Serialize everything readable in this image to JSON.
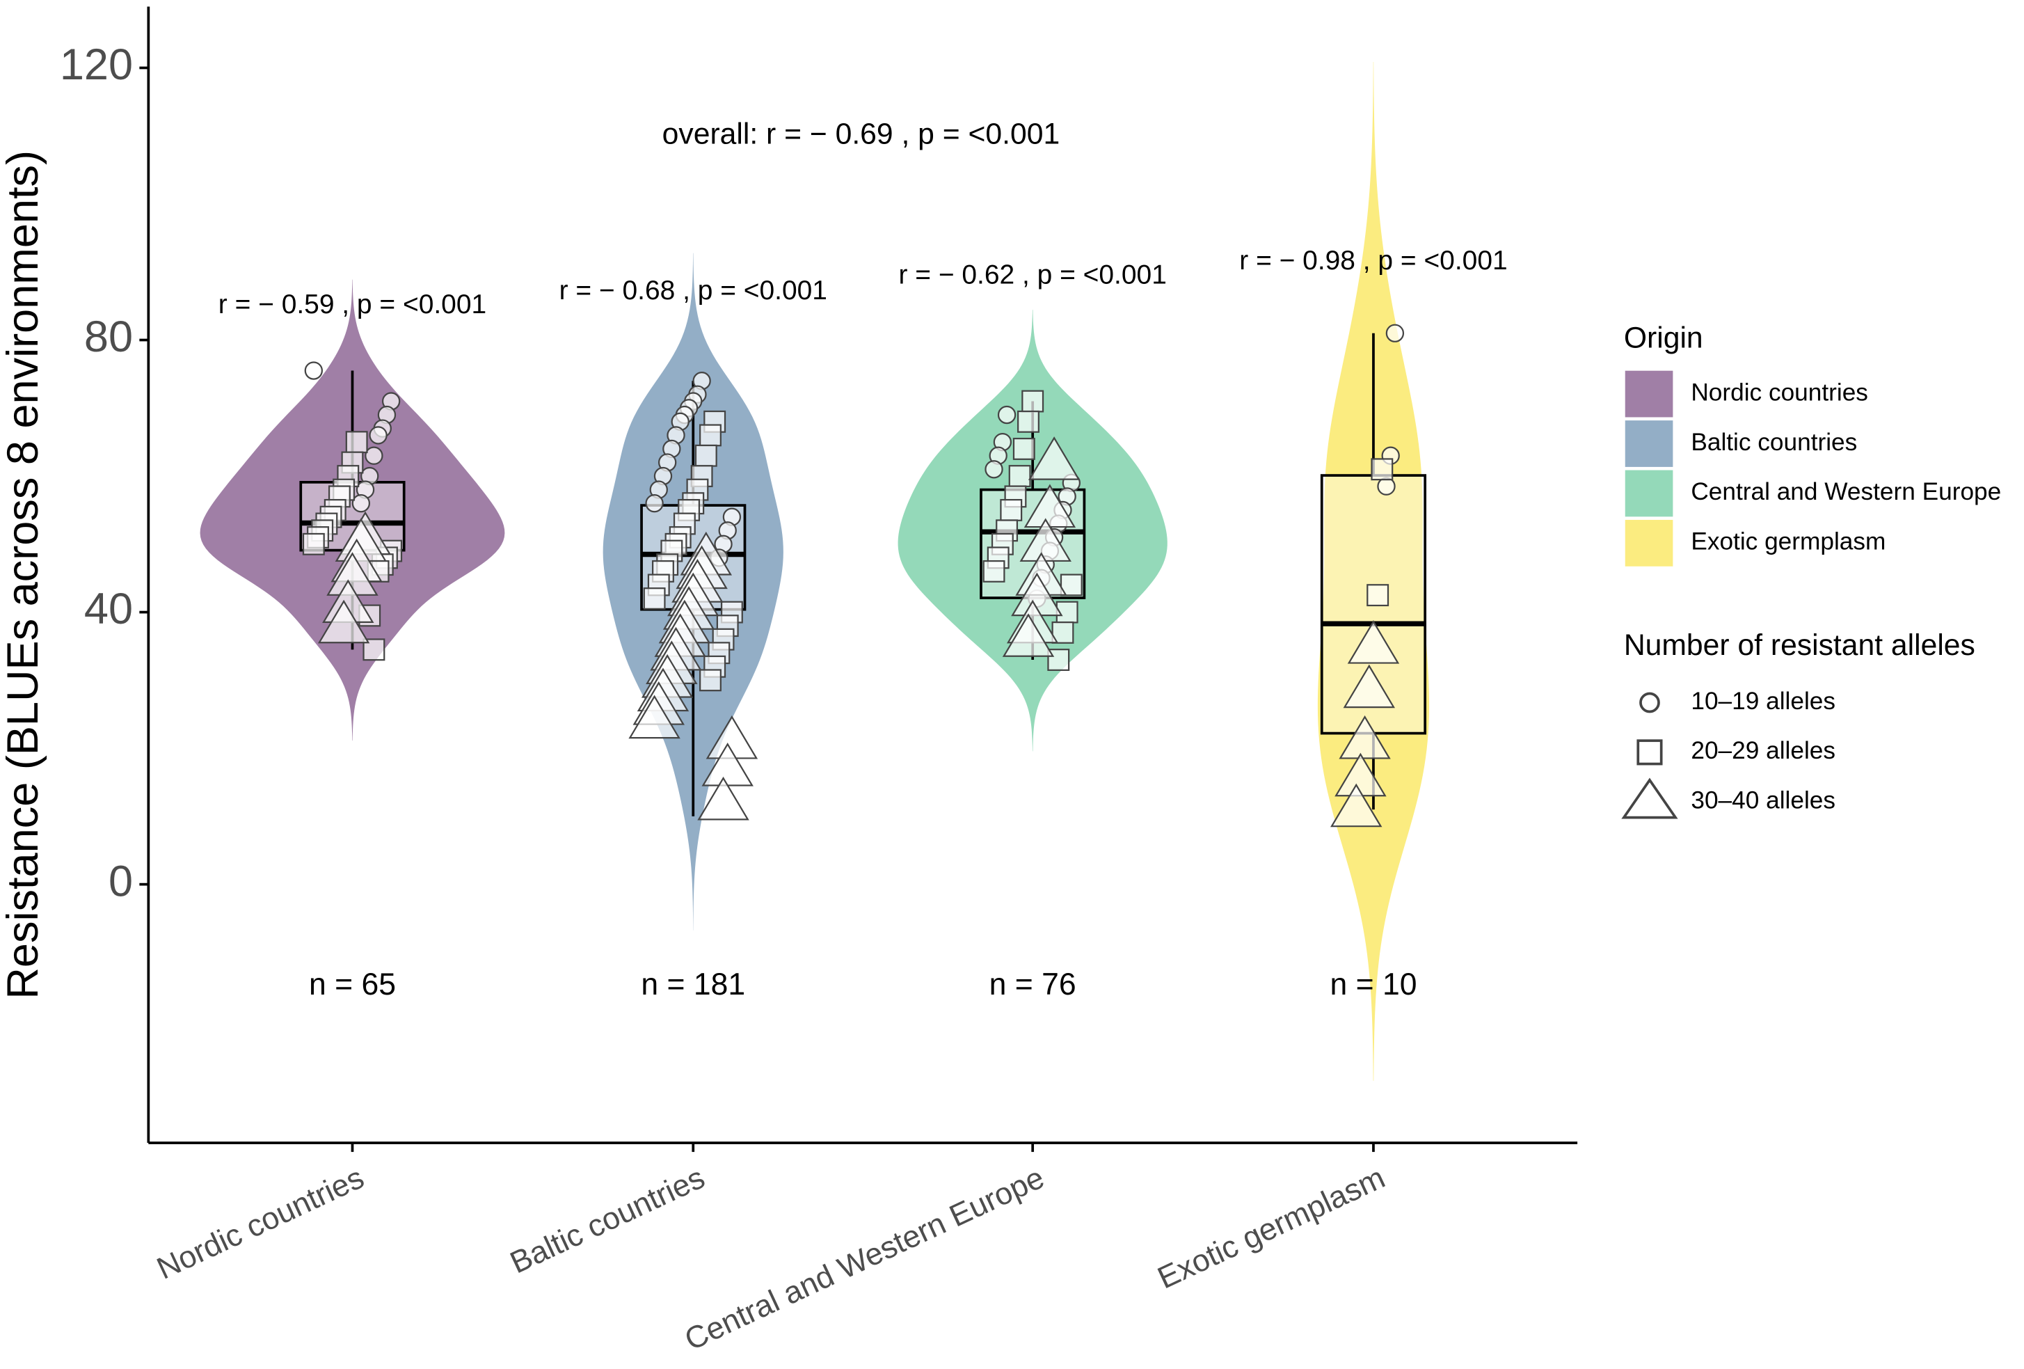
{
  "chart_data": {
    "type": "violin",
    "y_label": "Resistance (BLUEs across 8 environments)",
    "ylim": [
      -38,
      129
    ],
    "yticks": [
      0,
      40,
      80,
      120
    ],
    "categories": [
      "Nordic countries",
      "Baltic countries",
      "Central and Western Europe",
      "Exotic germplasm"
    ],
    "colors": [
      "#a07fa6",
      "#93aec6",
      "#94d9b9",
      "#fbec80"
    ],
    "overall_annotation": "overall: r = − 0.69 , p = <0.001",
    "annotations": [
      "r = − 0.59 , p = <0.001",
      "r = − 0.68 , p = <0.001",
      "r = − 0.62 , p = <0.001",
      "r = − 0.98 , p = <0.001"
    ],
    "n_labels": [
      "n = 65",
      "n = 181",
      "n = 76",
      "n = 10"
    ],
    "n_label_y": -15,
    "boxes": [
      {
        "lower_whisker": 34.5,
        "q1": 49.1,
        "median": 53.1,
        "q3": 59.1,
        "upper_whisker": 75.5
      },
      {
        "lower_whisker": 10,
        "q1": 40.4,
        "median": 48.5,
        "q3": 55.7,
        "upper_whisker": 74
      },
      {
        "lower_whisker": 33,
        "q1": 42.1,
        "median": 51.8,
        "q3": 58,
        "upper_whisker": 71
      },
      {
        "lower_whisker": 11,
        "q1": 22.2,
        "median": 38.3,
        "q3": 60.1,
        "upper_whisker": 81
      }
    ],
    "points": [
      {
        "values": [
          75.5,
          71,
          69,
          67,
          66,
          63,
          60,
          58,
          56,
          65,
          62,
          60,
          58,
          57,
          55,
          54,
          53,
          52,
          51,
          50,
          49,
          48,
          47,
          46,
          34.5,
          39.5,
          51,
          50,
          47,
          45,
          41,
          38
        ],
        "shapes": [
          "circle",
          "circle",
          "circle",
          "circle",
          "circle",
          "circle",
          "circle",
          "circle",
          "circle",
          "square",
          "square",
          "square",
          "square",
          "square",
          "square",
          "square",
          "square",
          "square",
          "square",
          "square",
          "square",
          "square",
          "square",
          "square",
          "square",
          "square",
          "triangle",
          "triangle",
          "triangle",
          "triangle",
          "triangle",
          "triangle"
        ]
      },
      {
        "values": [
          74,
          72,
          71,
          70,
          69,
          68,
          66,
          64,
          62,
          60,
          58,
          56,
          54,
          52,
          50,
          48,
          68,
          66,
          63,
          60,
          58,
          56,
          55,
          53,
          51,
          50,
          49,
          47,
          46,
          44,
          42,
          40,
          38,
          36,
          34,
          32,
          30,
          48,
          46,
          44,
          42,
          40,
          38,
          36,
          34,
          32,
          30,
          28,
          26,
          24,
          21,
          17,
          12
        ],
        "shapes": [
          "circle",
          "circle",
          "circle",
          "circle",
          "circle",
          "circle",
          "circle",
          "circle",
          "circle",
          "circle",
          "circle",
          "circle",
          "circle",
          "circle",
          "circle",
          "circle",
          "square",
          "square",
          "square",
          "square",
          "square",
          "square",
          "square",
          "square",
          "square",
          "square",
          "square",
          "square",
          "square",
          "square",
          "square",
          "square",
          "square",
          "square",
          "square",
          "square",
          "square",
          "triangle",
          "triangle",
          "triangle",
          "triangle",
          "triangle",
          "triangle",
          "triangle",
          "triangle",
          "triangle",
          "triangle",
          "triangle",
          "triangle",
          "triangle",
          "triangle",
          "triangle",
          "triangle"
        ]
      },
      {
        "values": [
          69,
          65,
          63,
          61,
          59,
          57,
          55,
          53,
          51,
          49,
          47,
          45,
          42,
          71,
          68,
          64,
          60,
          57,
          55,
          52,
          50,
          48,
          46,
          44,
          40,
          37,
          33,
          62,
          55,
          50,
          45,
          42,
          38,
          36
        ],
        "shapes": [
          "circle",
          "circle",
          "circle",
          "circle",
          "circle",
          "circle",
          "circle",
          "circle",
          "circle",
          "circle",
          "circle",
          "circle",
          "circle",
          "square",
          "square",
          "square",
          "square",
          "square",
          "square",
          "square",
          "square",
          "square",
          "square",
          "square",
          "square",
          "square",
          "square",
          "triangle",
          "triangle",
          "triangle",
          "triangle",
          "triangle",
          "triangle",
          "triangle"
        ]
      },
      {
        "values": [
          81,
          63,
          58.5,
          61,
          42.5,
          35,
          28.5,
          21,
          15.5,
          11
        ],
        "shapes": [
          "circle",
          "circle",
          "circle",
          "square",
          "square",
          "triangle",
          "triangle",
          "triangle",
          "triangle",
          "triangle"
        ]
      }
    ],
    "origin_legend_title": "Origin",
    "shape_legend": {
      "title": "Number of resistant alleles",
      "labels": [
        "10–19 alleles",
        "20–29 alleles",
        "30–40 alleles"
      ],
      "shapes": [
        "circle",
        "square",
        "triangle"
      ]
    }
  }
}
